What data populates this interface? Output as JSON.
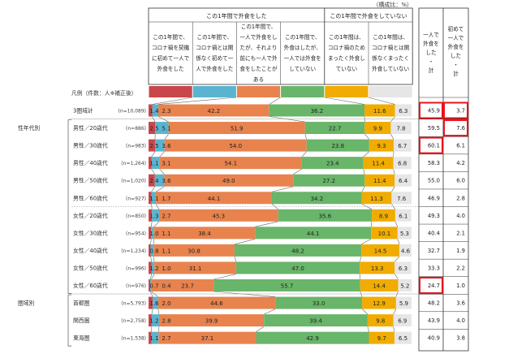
{
  "chart_data": {
    "type": "bar",
    "stacked": true,
    "orientation": "horizontal",
    "unit_note": "（構成比：%）",
    "header_groups": [
      {
        "label": "この1年間で外食をした",
        "span": 4
      },
      {
        "label": "この1年間で外食をしていない",
        "span": 2
      }
    ],
    "series": [
      {
        "name": "この1年間で、コロナ禍を契機に初めて一人で外食をした",
        "lines": [
          "この1年間で、",
          "コロナ禍を契機",
          "に初めて一人で",
          "外食をした"
        ],
        "color": "#c9474a"
      },
      {
        "name": "この1年間で、コロナ禍とは関係なく初めて一人で外食をした",
        "lines": [
          "この1年間で、",
          "コロナ禍とは関",
          "係なく初めて一",
          "人で外食をした"
        ],
        "color": "#5bb4cf"
      },
      {
        "name": "この1年間で、一人で外食をしたが、それより前にも一人で外食をしたことがある",
        "lines": [
          "この1年間で、",
          "一人で外食をし",
          "たが、それより",
          "前にも一人で外",
          "食をしたことが",
          "ある"
        ],
        "color": "#e8834e"
      },
      {
        "name": "この1年間で、外食はしたが、一人では外食をしていない",
        "lines": [
          "この1年間で、",
          "外食はしたが、",
          "一人では外食を",
          "していない"
        ],
        "color": "#69b56a"
      },
      {
        "name": "この1年間は、コロナ禍のためまったく外食していない",
        "lines": [
          "この1年間は、",
          "コロナ禍のため",
          "まったく外食し",
          "ていない"
        ],
        "color": "#f0ac00"
      },
      {
        "name": "この1年間は、コロナ禍とは関係なくまったく外食していない",
        "lines": [
          "この1年間は、",
          "コロナ禍とは関",
          "係なくまったく",
          "外食していない"
        ],
        "color": "#e6e6e6"
      }
    ],
    "legend_label": "凡例（件数：人※補正後）",
    "summary_headers": [
      [
        "一人で",
        "外食を",
        "した",
        "・",
        "計"
      ],
      [
        "初めて",
        "一人で",
        "外食を",
        "した",
        "・",
        "計"
      ]
    ],
    "groups": [
      {
        "label": "性年代別",
        "from": 1,
        "to": 10
      },
      {
        "label": "圏域別",
        "from": 11,
        "to": 13
      }
    ],
    "rows": [
      {
        "label": "3圏域計",
        "n": "(n=10,089)",
        "values": [
          1.4,
          2.3,
          42.2,
          36.2,
          11.6,
          6.3
        ],
        "total1": "45.9",
        "total2": "3.7",
        "hl1": true,
        "hl2": true
      },
      {
        "label": "男性／20歳代",
        "n": "(n=886)",
        "values": [
          2.5,
          5.1,
          51.9,
          22.7,
          9.9,
          7.8
        ],
        "total1": "59.5",
        "total2": "7.6",
        "hl1": false,
        "hl2": true
      },
      {
        "label": "男性／30歳代",
        "n": "(n=983)",
        "values": [
          2.5,
          3.6,
          54.0,
          23.8,
          9.3,
          6.7
        ],
        "total1": "60.1",
        "total2": "6.1",
        "hl1": true,
        "hl2": false
      },
      {
        "label": "男性／40歳代",
        "n": "(n=1,264)",
        "values": [
          1.1,
          3.1,
          54.1,
          23.4,
          11.4,
          6.8
        ],
        "total1": "58.3",
        "total2": "4.2"
      },
      {
        "label": "男性／50歳代",
        "n": "(n=1,020)",
        "values": [
          2.4,
          3.6,
          49.0,
          27.2,
          11.4,
          6.4
        ],
        "total1": "55.0",
        "total2": "6.0"
      },
      {
        "label": "男性／60歳代",
        "n": "(n=927)",
        "values": [
          1.1,
          1.7,
          44.1,
          34.2,
          11.3,
          7.6
        ],
        "total1": "46.9",
        "total2": "2.8"
      },
      {
        "label": "女性／20歳代",
        "n": "(n=850)",
        "values": [
          1.3,
          2.7,
          45.3,
          35.6,
          8.9,
          6.1
        ],
        "total1": "49.3",
        "total2": "4.0"
      },
      {
        "label": "女性／30歳代",
        "n": "(n=954)",
        "values": [
          1.0,
          1.1,
          38.4,
          44.1,
          10.1,
          5.3
        ],
        "total1": "40.4",
        "total2": "2.1"
      },
      {
        "label": "女性／40歳代",
        "n": "(n=1,234)",
        "values": [
          0.8,
          1.1,
          30.8,
          48.2,
          14.5,
          4.6
        ],
        "total1": "32.7",
        "total2": "1.9"
      },
      {
        "label": "女性／50歳代",
        "n": "(n=996)",
        "values": [
          1.2,
          1.0,
          31.1,
          47.0,
          13.3,
          6.3
        ],
        "total1": "33.3",
        "total2": "2.2"
      },
      {
        "label": "女性／60歳代",
        "n": "(n=976)",
        "values": [
          0.7,
          0.4,
          23.7,
          55.7,
          14.4,
          5.2
        ],
        "total1": "24.7",
        "total2": "1.0",
        "hl1": true
      },
      {
        "label": "首都圏",
        "n": "(n=5,793)",
        "values": [
          1.6,
          2.0,
          44.6,
          33.0,
          12.9,
          5.9
        ],
        "total1": "48.2",
        "total2": "3.6"
      },
      {
        "label": "関西圏",
        "n": "(n=2,758)",
        "values": [
          1.2,
          2.8,
          39.9,
          39.4,
          9.8,
          6.9
        ],
        "total1": "43.9",
        "total2": "4.0"
      },
      {
        "label": "東海圏",
        "n": "(n=1,538)",
        "values": [
          1.1,
          2.7,
          37.1,
          42.9,
          9.7,
          6.5
        ],
        "total1": "40.9",
        "total2": "3.8"
      }
    ],
    "xlim": [
      0,
      100
    ],
    "highlight_color": "#e8141b"
  }
}
